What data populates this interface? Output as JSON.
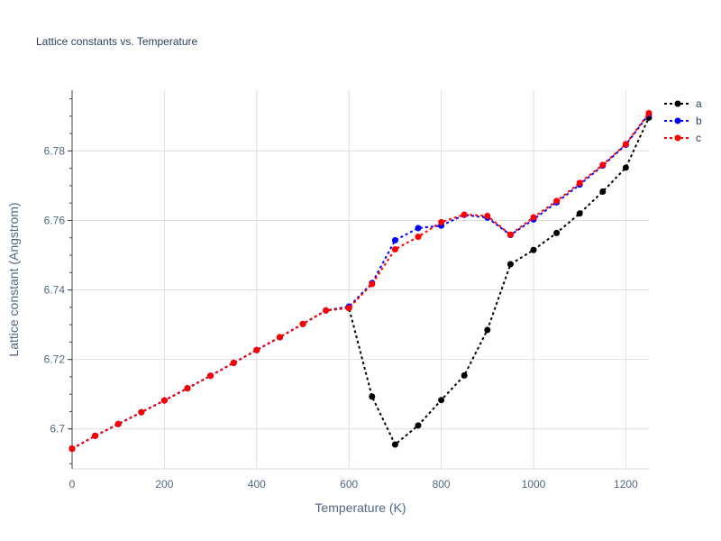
{
  "chart_data": {
    "type": "line",
    "title": "Lattice constants vs. Temperature",
    "xlabel": "Temperature (K)",
    "ylabel": "Lattice constant (Angstrom)",
    "xlim": [
      0,
      1250
    ],
    "ylim": [
      6.6885,
      6.7975
    ],
    "xticks": [
      0,
      200,
      400,
      600,
      800,
      1000,
      1200
    ],
    "yticks": [
      6.7,
      6.72,
      6.74,
      6.76,
      6.78
    ],
    "ytick_labels": [
      "6.7",
      "6.72",
      "6.74",
      "6.76",
      "6.78"
    ],
    "grid": true,
    "legend_position": "top-right",
    "x": [
      0,
      50,
      100,
      150,
      200,
      250,
      300,
      350,
      400,
      450,
      500,
      550,
      600,
      650,
      700,
      750,
      800,
      850,
      900,
      950,
      1000,
      1050,
      1100,
      1150,
      1200,
      1250
    ],
    "series": [
      {
        "name": "a",
        "color": "#000000",
        "values": [
          6.6943,
          6.698,
          6.7014,
          6.7048,
          6.7082,
          6.7117,
          6.7153,
          6.719,
          6.7227,
          6.7264,
          6.7302,
          6.7341,
          6.7348,
          6.7093,
          6.6955,
          6.701,
          6.7083,
          6.7154,
          6.7285,
          6.7474,
          6.7515,
          6.7564,
          6.762,
          6.7683,
          6.7752,
          6.7896
        ]
      },
      {
        "name": "b",
        "color": "#0000ff",
        "values": [
          6.6943,
          6.698,
          6.7014,
          6.7048,
          6.7082,
          6.7117,
          6.7153,
          6.719,
          6.7227,
          6.7264,
          6.7302,
          6.7341,
          6.7352,
          6.742,
          6.7543,
          6.7578,
          6.7585,
          6.7616,
          6.7608,
          6.7558,
          6.7603,
          6.7652,
          6.7703,
          6.7758,
          6.7818,
          6.7906
        ]
      },
      {
        "name": "c",
        "color": "#ff0000",
        "values": [
          6.6943,
          6.698,
          6.7014,
          6.7048,
          6.7082,
          6.7117,
          6.7153,
          6.719,
          6.7227,
          6.7264,
          6.7302,
          6.7341,
          6.7348,
          6.7417,
          6.7517,
          6.7553,
          6.7595,
          6.7617,
          6.7613,
          6.7559,
          6.7609,
          6.7656,
          6.7708,
          6.776,
          6.782,
          6.7909
        ]
      }
    ]
  }
}
